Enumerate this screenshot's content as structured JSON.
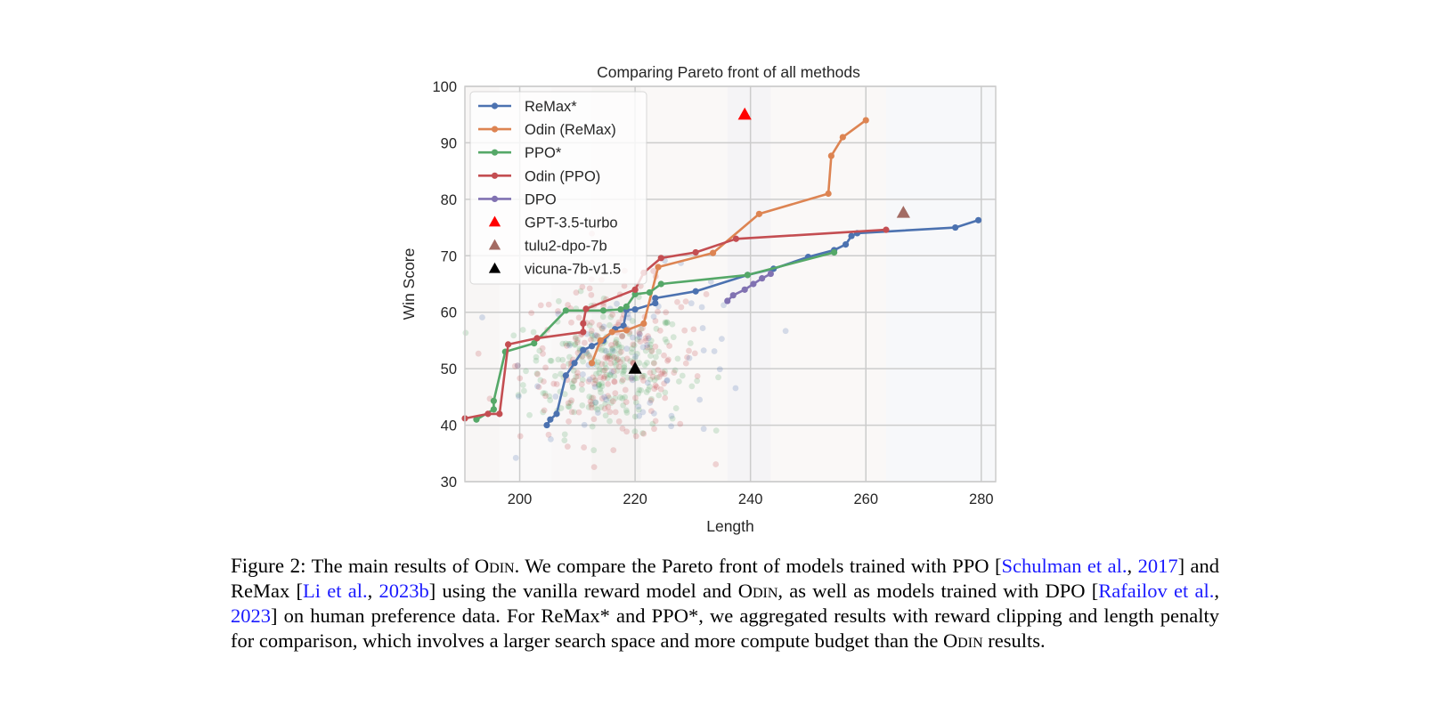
{
  "chart_data": {
    "type": "line",
    "title": "Comparing Pareto front of all methods",
    "xlabel": "Length",
    "ylabel": "Win Score",
    "xlim": [
      190.5,
      282.5
    ],
    "ylim": [
      30,
      100
    ],
    "xticks": [
      200,
      220,
      240,
      260,
      280
    ],
    "yticks": [
      30,
      40,
      50,
      60,
      70,
      80,
      90,
      100
    ],
    "grid": true,
    "legend_position": "top-left",
    "series": [
      {
        "name": "ReMax*",
        "color": "#4c72b0",
        "points": [
          [
            204.7,
            40
          ],
          [
            205.3,
            41
          ],
          [
            206.4,
            42
          ],
          [
            208.0,
            48.8
          ],
          [
            209.5,
            51
          ],
          [
            211.0,
            53.3
          ],
          [
            212.5,
            54
          ],
          [
            214.5,
            55
          ],
          [
            216.5,
            57
          ],
          [
            218.0,
            57.6
          ],
          [
            218.5,
            60.4
          ],
          [
            220.0,
            60.5
          ],
          [
            223.5,
            61.6
          ],
          [
            223.5,
            62.5
          ],
          [
            230.5,
            63.7
          ],
          [
            239.5,
            66.6
          ],
          [
            244.0,
            67.7
          ],
          [
            250.0,
            69.8
          ],
          [
            254.5,
            71
          ],
          [
            256.5,
            72
          ],
          [
            257.5,
            73.5
          ],
          [
            258.5,
            74.0
          ],
          [
            275.5,
            75
          ],
          [
            279.5,
            76.3
          ]
        ]
      },
      {
        "name": "Odin (ReMax)",
        "color": "#dd8452",
        "points": [
          [
            212.5,
            51
          ],
          [
            214.0,
            55
          ],
          [
            216.0,
            56.5
          ],
          [
            218.5,
            56.8
          ],
          [
            221.5,
            58
          ],
          [
            224.0,
            68
          ],
          [
            233.5,
            70.5
          ],
          [
            241.5,
            77.4
          ],
          [
            253.5,
            81
          ],
          [
            254.0,
            87.7
          ],
          [
            256.0,
            91
          ],
          [
            260.0,
            94
          ]
        ]
      },
      {
        "name": "PPO*",
        "color": "#55a868",
        "points": [
          [
            192.5,
            41
          ],
          [
            195.5,
            42.8
          ],
          [
            195.5,
            44.3
          ],
          [
            197.5,
            53
          ],
          [
            202.5,
            54.5
          ],
          [
            208.0,
            60.3
          ],
          [
            214.5,
            60.3
          ],
          [
            217.5,
            60.5
          ],
          [
            218.5,
            61
          ],
          [
            220.0,
            63.2
          ],
          [
            222.5,
            63.5
          ],
          [
            224.5,
            65
          ],
          [
            239.5,
            66.6
          ],
          [
            254.5,
            70.6
          ]
        ]
      },
      {
        "name": "Odin (PPO)",
        "color": "#c44e52",
        "points": [
          [
            190.5,
            41.2
          ],
          [
            194.5,
            42
          ],
          [
            196.5,
            42
          ],
          [
            198.0,
            54.3
          ],
          [
            203.0,
            55.4
          ],
          [
            211.0,
            56.5
          ],
          [
            211.0,
            58
          ],
          [
            211.5,
            60.6
          ],
          [
            220.0,
            64
          ],
          [
            221.5,
            67
          ],
          [
            224.5,
            69.6
          ],
          [
            230.5,
            70.6
          ],
          [
            237.5,
            73
          ],
          [
            263.5,
            74.6
          ]
        ]
      },
      {
        "name": "DPO",
        "color": "#8172b2",
        "points": [
          [
            236.0,
            62
          ],
          [
            237.0,
            63
          ],
          [
            239.0,
            64
          ],
          [
            240.5,
            65
          ],
          [
            242.0,
            66
          ],
          [
            243.5,
            66.8
          ]
        ]
      }
    ],
    "markers": [
      {
        "name": "GPT-3.5-turbo",
        "color": "#ff0000",
        "x": 239,
        "y": 95
      },
      {
        "name": "tulu2-dpo-7b",
        "color": "#a36b63",
        "x": 266.5,
        "y": 77.6
      },
      {
        "name": "vicuna-7b-v1.5",
        "color": "#000000",
        "x": 220,
        "y": 50
      }
    ],
    "scatter_clouds": [
      {
        "color": "#55a868",
        "cx": 215,
        "cy": 50,
        "sx": 7,
        "sy": 5.5,
        "n": 230
      },
      {
        "color": "#c44e52",
        "cx": 216,
        "cy": 51,
        "sx": 8,
        "sy": 7,
        "n": 200
      },
      {
        "color": "#4c72b0",
        "cx": 222,
        "cy": 52,
        "sx": 10,
        "sy": 7,
        "n": 70
      }
    ]
  },
  "caption": {
    "lead": "Figure 2:",
    "t1": "The main results of ",
    "odin1": "Odin",
    "t2": ". We compare the Pareto front of models trained with PPO [",
    "c1a": "Schulman et al.",
    "t3": ", ",
    "c1b": "2017",
    "t4": "] and ReMax [",
    "c2a": "Li et al.",
    "t5": ", ",
    "c2b": "2023b",
    "t6": "] using the vanilla reward model and ",
    "odin2": "Odin",
    "t7": ", as well as models trained with DPO [",
    "c3a": "Rafailov et al.",
    "t8": ", ",
    "c3b": "2023",
    "t9": "] on human preference data. For ReMax* and PPO*, we aggregated results with reward clipping and length penalty for comparison, which involves a larger search space and more compute budget than the ",
    "odin3": "Odin",
    "t10": " results."
  }
}
